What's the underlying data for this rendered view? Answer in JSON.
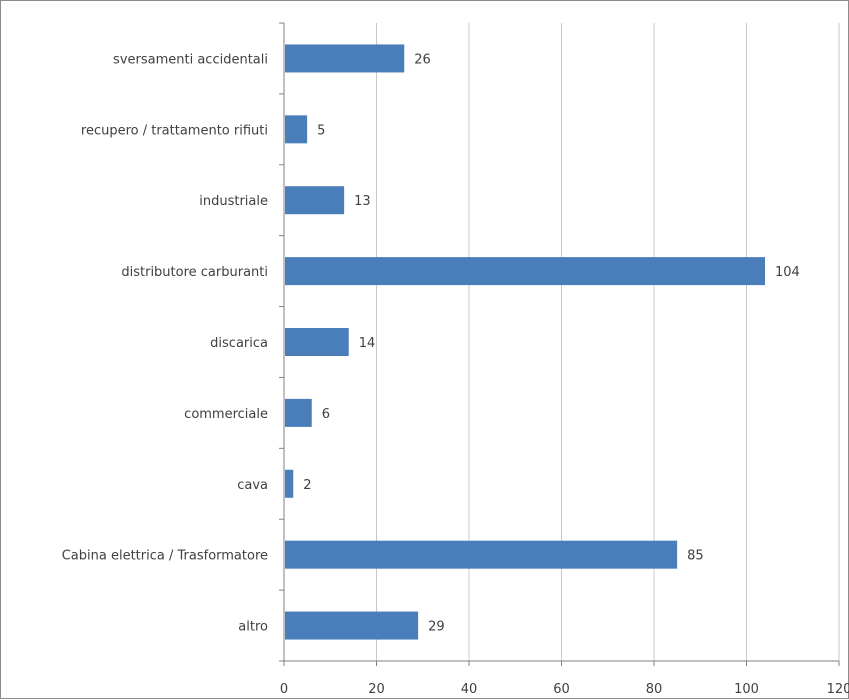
{
  "chart_data": {
    "type": "bar",
    "orientation": "horizontal",
    "categories": [
      "sversamenti accidentali",
      "recupero / trattamento rifiuti",
      "industriale",
      "distributore carburanti",
      "discarica",
      "commerciale",
      "cava",
      "Cabina elettrica / Trasformatore",
      "altro"
    ],
    "values": [
      26,
      5,
      13,
      104,
      14,
      6,
      2,
      85,
      29
    ],
    "xlim": [
      0,
      120
    ],
    "xticks": [
      0,
      20,
      40,
      60,
      80,
      100,
      120
    ],
    "grid": "vertical",
    "legend": "none",
    "title": "",
    "xlabel": "",
    "ylabel": "",
    "colors": {
      "bar": "#4a7ebb",
      "grid": "#c8c8c8",
      "axis": "#808080",
      "text": "#404040"
    }
  }
}
